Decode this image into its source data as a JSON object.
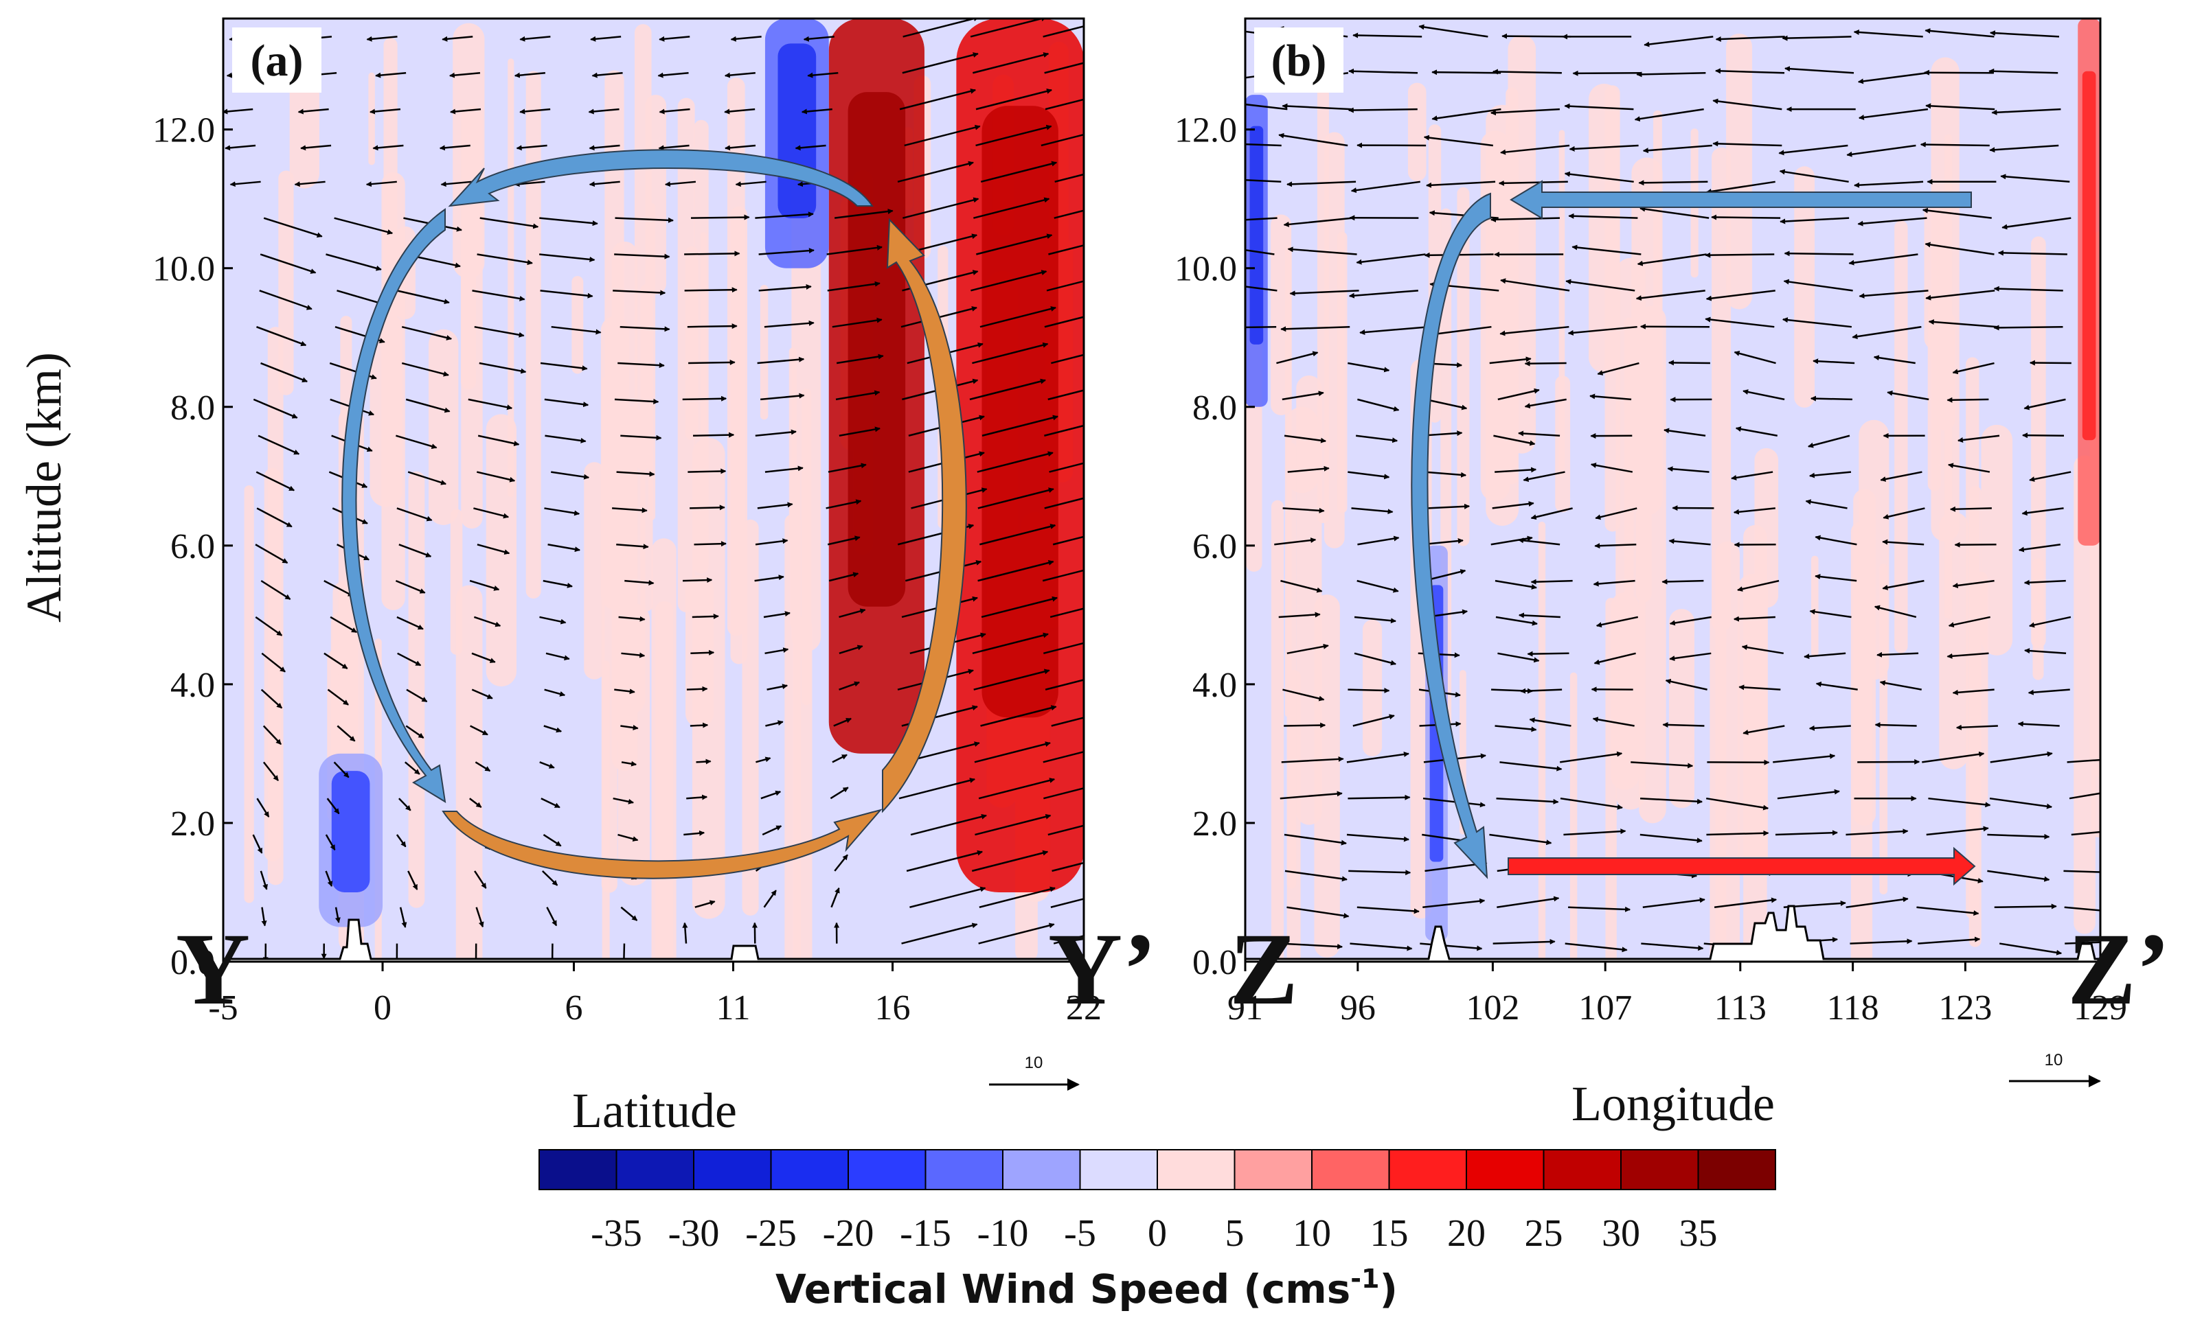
{
  "chart_data": [
    {
      "type": "vector-cross-section",
      "panel": "(a)",
      "xlabel": "Latitude",
      "ylabel": "Altitude (km)",
      "xticks": [
        "-5",
        "0",
        "6",
        "11",
        "16",
        "22"
      ],
      "xlim": [
        -5,
        22
      ],
      "yticks": [
        "0.0",
        "2.0",
        "4.0",
        "6.0",
        "8.0",
        "10.0",
        "12.0"
      ],
      "ylim": [
        0,
        13.6
      ],
      "section_start": "Y",
      "section_end": "Y’",
      "reference_vector": "10",
      "vertical_wind_regions": [
        {
          "lat_range": [
            14,
            17
          ],
          "alt_range": [
            3,
            13.6
          ],
          "speed": 25
        },
        {
          "lat_range": [
            18,
            22
          ],
          "alt_range": [
            1,
            13.6
          ],
          "speed": 20
        },
        {
          "lat_range": [
            12,
            14
          ],
          "alt_range": [
            10,
            13.6
          ],
          "speed": -15
        },
        {
          "lat_range": [
            -2,
            0
          ],
          "alt_range": [
            0.5,
            3
          ],
          "speed": -10
        }
      ],
      "circulation": [
        "ascent near 16N",
        "northerly return flow aloft near 12 km",
        "descent near 1N",
        "southerly low-level inflow near 2 km"
      ]
    },
    {
      "type": "vector-cross-section",
      "panel": "(b)",
      "xlabel": "Longitude",
      "ylabel": "Altitude (km)",
      "xticks": [
        "91",
        "96",
        "102",
        "107",
        "113",
        "118",
        "123",
        "129"
      ],
      "xlim": [
        91,
        129
      ],
      "yticks": [
        "0.0",
        "2.0",
        "4.0",
        "6.0",
        "8.0",
        "10.0",
        "12.0"
      ],
      "ylim": [
        0,
        13.6
      ],
      "section_start": "Z",
      "section_end": "Z’",
      "reference_vector": "10",
      "vertical_wind_regions": [
        {
          "lon_range": [
            91,
            92
          ],
          "alt_range": [
            8,
            12.5
          ],
          "speed": -15
        },
        {
          "lon_range": [
            99,
            100
          ],
          "alt_range": [
            0.3,
            6
          ],
          "speed": -10
        },
        {
          "lon_range": [
            128,
            129
          ],
          "alt_range": [
            6,
            13.6
          ],
          "speed": 10
        }
      ],
      "circulation": [
        "westward upper flow near 11.5 km",
        "descent near 101E",
        "eastward low-level flow near 1.5 km"
      ]
    }
  ],
  "colorbar": {
    "title": "Vertical Wind Speed (cms",
    "title_superscript": "-1",
    "title_close": ")",
    "labels": [
      "-35",
      "-30",
      "-25",
      "-20",
      "-15",
      "-10",
      "-5",
      "0",
      "5",
      "10",
      "15",
      "20",
      "25",
      "30",
      "35"
    ],
    "colors": [
      "#0a0f8c",
      "#0d18b4",
      "#1020d8",
      "#1a2df0",
      "#2b3dff",
      "#5a68ff",
      "#9ea4ff",
      "#dcdcff",
      "#ffdcdc",
      "#ffa0a0",
      "#ff6464",
      "#ff1e1e",
      "#e60000",
      "#c00000",
      "#a00000",
      "#7c0000"
    ]
  },
  "colors": {
    "blue_arrow": "#5b9bd5",
    "orange_arrow": "#dd8a3a",
    "red_arrow": "#ff2020"
  }
}
